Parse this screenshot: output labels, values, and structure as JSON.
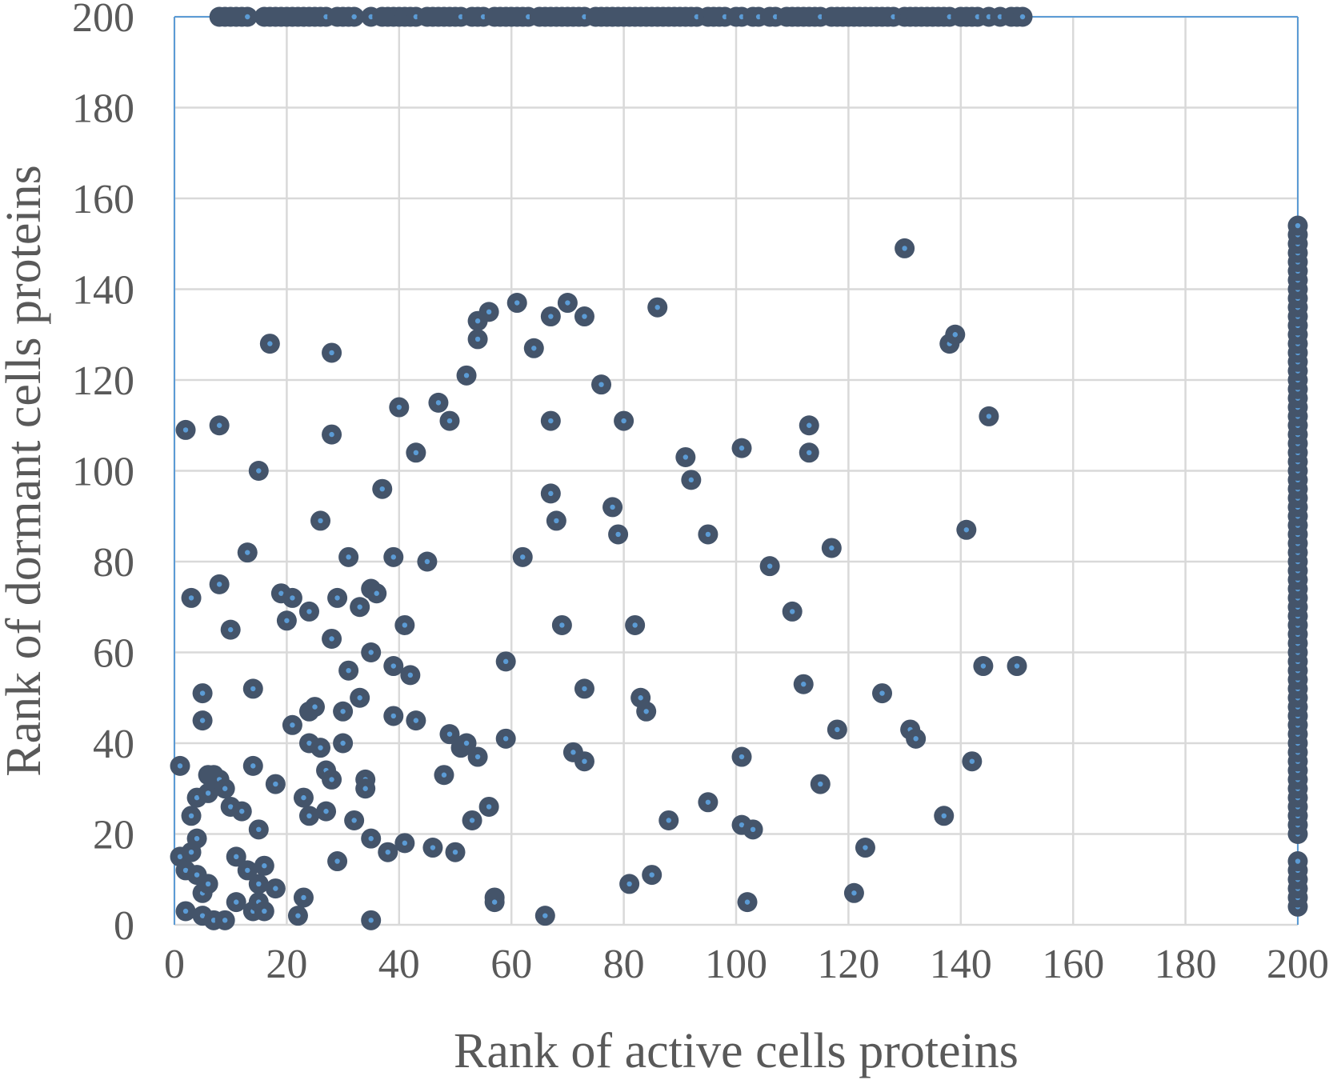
{
  "chart_data": {
    "type": "scatter",
    "title": "",
    "xlabel": "Rank of active cells proteins",
    "ylabel": "Rank of dormant cells proteins",
    "xlim": [
      0,
      200
    ],
    "ylim": [
      0,
      200
    ],
    "xticks": [
      "0",
      "20",
      "40",
      "60",
      "80",
      "100",
      "120",
      "140",
      "160",
      "180",
      "200"
    ],
    "yticks": [
      "0",
      "20",
      "40",
      "60",
      "80",
      "100",
      "120",
      "140",
      "160",
      "180",
      "200"
    ],
    "grid": true,
    "legend": "none",
    "colors": {
      "marker_edge": "#44546a",
      "marker_fill": "#5b9bd5",
      "grid": "#d9d9d9",
      "frame": "#5b9bd5",
      "text": "#595959"
    },
    "series": [
      {
        "points": [
          [
            1,
            35
          ],
          [
            1,
            15
          ],
          [
            2,
            109
          ],
          [
            3,
            72
          ],
          [
            2,
            12
          ],
          [
            2,
            3
          ],
          [
            3,
            16
          ],
          [
            3,
            24
          ],
          [
            4,
            28
          ],
          [
            4,
            19
          ],
          [
            4,
            11
          ],
          [
            5,
            51
          ],
          [
            5,
            45
          ],
          [
            5,
            7
          ],
          [
            5,
            2
          ],
          [
            6,
            33
          ],
          [
            6,
            29
          ],
          [
            6,
            9
          ],
          [
            7,
            1
          ],
          [
            7,
            33
          ],
          [
            8,
            110
          ],
          [
            8,
            75
          ],
          [
            8,
            32
          ],
          [
            9,
            1
          ],
          [
            9,
            30
          ],
          [
            10,
            65
          ],
          [
            10,
            26
          ],
          [
            11,
            15
          ],
          [
            11,
            5
          ],
          [
            12,
            25
          ],
          [
            13,
            82
          ],
          [
            13,
            12
          ],
          [
            14,
            52
          ],
          [
            14,
            35
          ],
          [
            14,
            3
          ],
          [
            15,
            100
          ],
          [
            15,
            21
          ],
          [
            15,
            5
          ],
          [
            15,
            9
          ],
          [
            16,
            13
          ],
          [
            16,
            3
          ],
          [
            17,
            128
          ],
          [
            18,
            31
          ],
          [
            18,
            8
          ],
          [
            19,
            73
          ],
          [
            20,
            67
          ],
          [
            21,
            72
          ],
          [
            21,
            44
          ],
          [
            22,
            2
          ],
          [
            23,
            28
          ],
          [
            23,
            6
          ],
          [
            24,
            69
          ],
          [
            24,
            47
          ],
          [
            24,
            40
          ],
          [
            24,
            24
          ],
          [
            25,
            48
          ],
          [
            26,
            89
          ],
          [
            26,
            39
          ],
          [
            27,
            34
          ],
          [
            27,
            25
          ],
          [
            28,
            126
          ],
          [
            28,
            108
          ],
          [
            28,
            63
          ],
          [
            28,
            32
          ],
          [
            29,
            72
          ],
          [
            29,
            14
          ],
          [
            30,
            47
          ],
          [
            30,
            40
          ],
          [
            31,
            81
          ],
          [
            31,
            56
          ],
          [
            32,
            23
          ],
          [
            33,
            70
          ],
          [
            33,
            50
          ],
          [
            34,
            32
          ],
          [
            34,
            30
          ],
          [
            35,
            74
          ],
          [
            35,
            60
          ],
          [
            35,
            19
          ],
          [
            35,
            1
          ],
          [
            36,
            73
          ],
          [
            37,
            96
          ],
          [
            38,
            16
          ],
          [
            39,
            81
          ],
          [
            39,
            57
          ],
          [
            39,
            46
          ],
          [
            40,
            114
          ],
          [
            41,
            66
          ],
          [
            41,
            18
          ],
          [
            42,
            55
          ],
          [
            43,
            104
          ],
          [
            43,
            45
          ],
          [
            45,
            80
          ],
          [
            46,
            17
          ],
          [
            47,
            115
          ],
          [
            48,
            33
          ],
          [
            49,
            111
          ],
          [
            49,
            42
          ],
          [
            50,
            16
          ],
          [
            51,
            39
          ],
          [
            52,
            121
          ],
          [
            52,
            40
          ],
          [
            53,
            23
          ],
          [
            54,
            133
          ],
          [
            54,
            129
          ],
          [
            54,
            37
          ],
          [
            56,
            135
          ],
          [
            56,
            26
          ],
          [
            57,
            6
          ],
          [
            57,
            5
          ],
          [
            59,
            58
          ],
          [
            59,
            41
          ],
          [
            61,
            137
          ],
          [
            62,
            81
          ],
          [
            64,
            127
          ],
          [
            66,
            2
          ],
          [
            67,
            134
          ],
          [
            67,
            111
          ],
          [
            67,
            95
          ],
          [
            68,
            89
          ],
          [
            69,
            66
          ],
          [
            70,
            137
          ],
          [
            71,
            38
          ],
          [
            73,
            134
          ],
          [
            73,
            52
          ],
          [
            73,
            36
          ],
          [
            76,
            119
          ],
          [
            78,
            92
          ],
          [
            79,
            86
          ],
          [
            80,
            111
          ],
          [
            81,
            9
          ],
          [
            82,
            66
          ],
          [
            83,
            50
          ],
          [
            84,
            47
          ],
          [
            85,
            11
          ],
          [
            86,
            136
          ],
          [
            88,
            23
          ],
          [
            91,
            103
          ],
          [
            92,
            98
          ],
          [
            95,
            86
          ],
          [
            95,
            27
          ],
          [
            101,
            105
          ],
          [
            101,
            37
          ],
          [
            101,
            22
          ],
          [
            102,
            5
          ],
          [
            103,
            21
          ],
          [
            106,
            79
          ],
          [
            110,
            69
          ],
          [
            112,
            53
          ],
          [
            113,
            110
          ],
          [
            113,
            104
          ],
          [
            115,
            31
          ],
          [
            117,
            83
          ],
          [
            118,
            43
          ],
          [
            121,
            7
          ],
          [
            123,
            17
          ],
          [
            126,
            51
          ],
          [
            130,
            149
          ],
          [
            131,
            43
          ],
          [
            132,
            41
          ],
          [
            137,
            24
          ],
          [
            138,
            128
          ],
          [
            139,
            130
          ],
          [
            141,
            87
          ],
          [
            142,
            36
          ],
          [
            144,
            57
          ],
          [
            145,
            112
          ],
          [
            150,
            57
          ]
        ]
      },
      {
        "name_note": "",
        "points_top_row_x": [
          8,
          9,
          10,
          11,
          12,
          13,
          16,
          17,
          18,
          19,
          20,
          21,
          22,
          23,
          24,
          25,
          26,
          27,
          29,
          30,
          31,
          32,
          35,
          37,
          38,
          39,
          40,
          41,
          42,
          43,
          45,
          46,
          47,
          48,
          49,
          50,
          51,
          53,
          54,
          55,
          57,
          58,
          59,
          60,
          61,
          62,
          63,
          65,
          66,
          67,
          68,
          69,
          70,
          71,
          72,
          73,
          75,
          76,
          77,
          78,
          79,
          80,
          81,
          82,
          83,
          84,
          85,
          86,
          87,
          88,
          89,
          90,
          91,
          92,
          93,
          95,
          96,
          97,
          98,
          100,
          101,
          103,
          104,
          106,
          107,
          109,
          110,
          111,
          112,
          113,
          114,
          115,
          117,
          118,
          119,
          120,
          121,
          122,
          123,
          124,
          125,
          126,
          127,
          128,
          130,
          131,
          132,
          133,
          134,
          135,
          136,
          137,
          138,
          140,
          141,
          142,
          143,
          145,
          147,
          149,
          150,
          151
        ],
        "top_row_y": 200,
        "right_column_x": 200,
        "right_column_y": [
          4,
          6,
          8,
          10,
          12,
          14,
          20,
          22,
          24,
          26,
          28,
          30,
          32,
          34,
          36,
          38,
          40,
          42,
          44,
          46,
          48,
          50,
          52,
          54,
          56,
          58,
          60,
          62,
          64,
          66,
          68,
          70,
          72,
          74,
          76,
          78,
          80,
          82,
          84,
          86,
          88,
          90,
          92,
          94,
          96,
          98,
          100,
          102,
          104,
          106,
          108,
          110,
          112,
          114,
          116,
          118,
          120,
          122,
          124,
          126,
          128,
          130,
          132,
          134,
          136,
          138,
          140,
          142,
          144,
          146,
          148,
          150,
          152,
          154
        ]
      }
    ]
  }
}
